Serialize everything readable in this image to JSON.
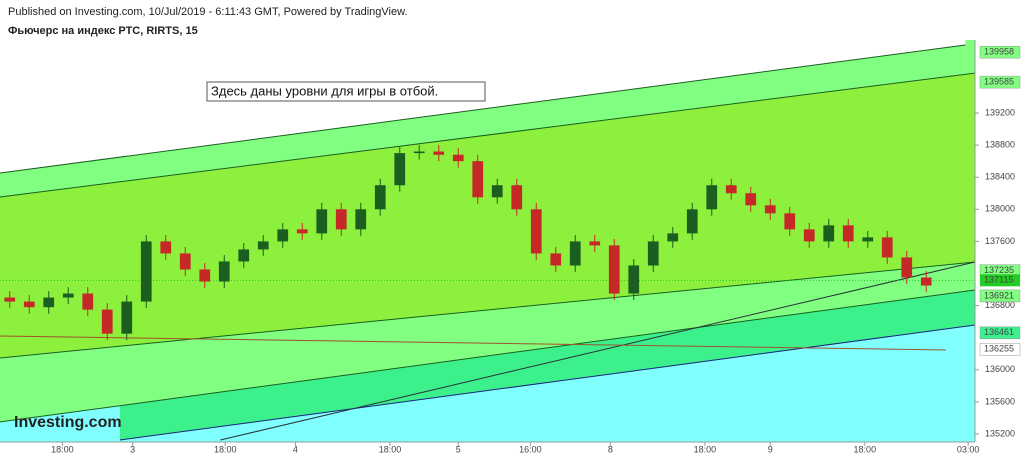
{
  "header": {
    "published": "Published on Investing.com, 10/Jul/2019 - 6:11:43 GMT, Powered by TradingView.",
    "symbol": "Фьючерс на индекс РТС, RIRTS, 15",
    "logo": "Investing.com"
  },
  "chart_data": {
    "type": "candlestick",
    "annotation": "Здесь даны уровни для игры в отбой.",
    "x": [
      1,
      3,
      5,
      7,
      9,
      11,
      13,
      15,
      17,
      19,
      21,
      23,
      25,
      27,
      29,
      31,
      33,
      35,
      37,
      39,
      41,
      43,
      45,
      47,
      49,
      51,
      53,
      55,
      57,
      59,
      61,
      63,
      65,
      67,
      69,
      71,
      73,
      75,
      77,
      79,
      81,
      83,
      85,
      87,
      89,
      91,
      93,
      95
    ],
    "open": [
      136900,
      136850,
      136780,
      136900,
      136950,
      136750,
      136450,
      136850,
      137600,
      137450,
      137250,
      137100,
      137350,
      137500,
      137600,
      137750,
      137700,
      138000,
      137750,
      138000,
      138300,
      138700,
      138720,
      138680,
      138600,
      138150,
      138300,
      138000,
      137450,
      137300,
      137600,
      137550,
      136950,
      137300,
      137600,
      137700,
      138000,
      138300,
      138200,
      138050,
      137950,
      137750,
      137600,
      137800,
      137600,
      137650,
      137400,
      137150
    ],
    "high": [
      136980,
      136930,
      136980,
      137030,
      137030,
      136830,
      136930,
      137680,
      137680,
      137530,
      137330,
      137430,
      137580,
      137680,
      137830,
      137830,
      138080,
      138080,
      138080,
      138380,
      138780,
      138800,
      138800,
      138760,
      138680,
      138380,
      138380,
      138080,
      137530,
      137680,
      137680,
      137630,
      137380,
      137680,
      137780,
      138080,
      138380,
      138380,
      138280,
      138130,
      138030,
      137830,
      137880,
      137880,
      137730,
      137730,
      137480,
      137230
    ],
    "low": [
      136770,
      136700,
      136700,
      136820,
      136670,
      136370,
      136370,
      136770,
      137370,
      137170,
      137020,
      137020,
      137270,
      137420,
      137520,
      137620,
      137620,
      137670,
      137670,
      137920,
      138220,
      138620,
      138600,
      138520,
      138070,
      138070,
      137920,
      137370,
      137220,
      137220,
      137470,
      136870,
      136870,
      137220,
      137520,
      137620,
      137920,
      138120,
      137970,
      137870,
      137670,
      137520,
      137520,
      137520,
      137520,
      137320,
      137070,
      136970
    ],
    "close": [
      136850,
      136780,
      136900,
      136950,
      136750,
      136450,
      136850,
      137600,
      137450,
      137250,
      137100,
      137350,
      137500,
      137600,
      137750,
      137700,
      138000,
      137750,
      138000,
      138300,
      138700,
      138720,
      138680,
      138600,
      138150,
      138300,
      138000,
      137450,
      137300,
      137600,
      137550,
      136950,
      137300,
      137600,
      137700,
      138000,
      138300,
      138200,
      138050,
      137950,
      137750,
      137600,
      137800,
      137600,
      137650,
      137400,
      137150,
      137050
    ],
    "up_color": "#1b5e20",
    "down_color": "#c62828",
    "lines": [
      {
        "x": [
          12.3,
          100
        ],
        "y": [
          135125,
          136558
        ],
        "color": "#1a237e",
        "fill": "#3cf08c"
      },
      {
        "x": [
          0,
          100
        ],
        "y": [
          135350,
          136995
        ],
        "color": "#1b5e20",
        "fill": "#80ff80"
      },
      {
        "x": [
          0,
          100
        ],
        "y": [
          136147,
          137343
        ],
        "color": "#1b5e20",
        "fill": "#8cf03c"
      },
      {
        "x": [
          0,
          100
        ],
        "y": [
          138153,
          139698
        ],
        "color": "#1b5e20",
        "fill": "#80ff80"
      },
      {
        "x": [
          0,
          99
        ],
        "y": [
          138452,
          140047
        ],
        "color": "#1b5e20",
        "fill": "#ffffff"
      },
      {
        "x": [
          22.6,
          100
        ],
        "y": [
          135125,
          137343
        ],
        "color": "#263238"
      },
      {
        "x": [
          0,
          97
        ],
        "y": [
          136421,
          136247
        ],
        "color": "#a0522d"
      }
    ],
    "background": "#80ffff",
    "last_price": 137115,
    "last_color": "#22cc22",
    "price_labels": [
      {
        "value": 139958,
        "color": "#80ff80"
      },
      {
        "value": 139585,
        "color": "#80ff80"
      },
      {
        "value": 137235,
        "color": "#80ff80"
      },
      {
        "value": 136921,
        "color": "#80ff80"
      },
      {
        "value": 136461,
        "color": "#3cf08c"
      },
      {
        "value": 136255,
        "color": "#ffffff"
      }
    ],
    "xlim": [
      0,
      100
    ],
    "xticks": [
      {
        "value": 6.4,
        "label": "18:00"
      },
      {
        "value": 13.6,
        "label": "3"
      },
      {
        "value": 23.1,
        "label": "18:00"
      },
      {
        "value": 30.3,
        "label": "4"
      },
      {
        "value": 40,
        "label": "18:00"
      },
      {
        "value": 47,
        "label": "5"
      },
      {
        "value": 54.4,
        "label": "16:00"
      },
      {
        "value": 62.6,
        "label": "8"
      },
      {
        "value": 72.3,
        "label": "18:00"
      },
      {
        "value": 79,
        "label": "9"
      },
      {
        "value": 88.7,
        "label": "18:00"
      },
      {
        "value": 99.3,
        "label": "03:00"
      }
    ],
    "ylim": [
      135100,
      140110
    ],
    "yticks": [
      135200,
      135600,
      136000,
      136800,
      137600,
      138000,
      138400,
      138800,
      139200
    ]
  }
}
